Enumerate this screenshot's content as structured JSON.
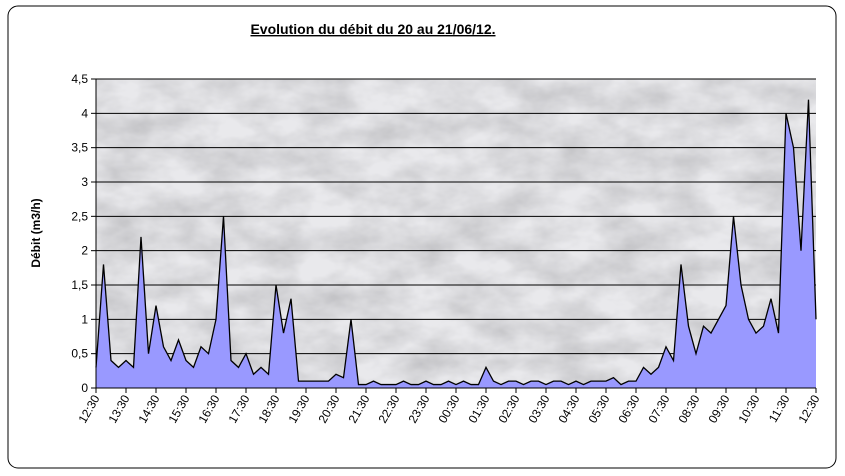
{
  "chart_data": {
    "type": "area",
    "title": "Evolution du débit du 20 au 21/06/12.",
    "y_label": "Débit (m3/h)",
    "fill_color": "#9999ff",
    "line_color": "#000000",
    "grid": true,
    "xlim": [
      0,
      24
    ],
    "xticks": [
      {
        "value": 0,
        "label": "12:30"
      },
      {
        "value": 1,
        "label": "13:30"
      },
      {
        "value": 2,
        "label": "14:30"
      },
      {
        "value": 3,
        "label": "15:30"
      },
      {
        "value": 4,
        "label": "16:30"
      },
      {
        "value": 5,
        "label": "17:30"
      },
      {
        "value": 6,
        "label": "18:30"
      },
      {
        "value": 7,
        "label": "19:30"
      },
      {
        "value": 8,
        "label": "20:30"
      },
      {
        "value": 9,
        "label": "21:30"
      },
      {
        "value": 10,
        "label": "22:30"
      },
      {
        "value": 11,
        "label": "23:30"
      },
      {
        "value": 12,
        "label": "00:30"
      },
      {
        "value": 13,
        "label": "01:30"
      },
      {
        "value": 14,
        "label": "02:30"
      },
      {
        "value": 15,
        "label": "03:30"
      },
      {
        "value": 16,
        "label": "04:30"
      },
      {
        "value": 17,
        "label": "05:30"
      },
      {
        "value": 18,
        "label": "06:30"
      },
      {
        "value": 19,
        "label": "07:30"
      },
      {
        "value": 20,
        "label": "08:30"
      },
      {
        "value": 21,
        "label": "09:30"
      },
      {
        "value": 22,
        "label": "10:30"
      },
      {
        "value": 23,
        "label": "11:30"
      },
      {
        "value": 24,
        "label": "12:30"
      }
    ],
    "ylim": [
      0,
      4.5
    ],
    "yticks": [
      0,
      {
        "value": 0.5,
        "label": "0,5"
      },
      1,
      {
        "value": 1.5,
        "label": "1,5"
      },
      2,
      {
        "value": 2.5,
        "label": "2,5"
      },
      3,
      {
        "value": 3.5,
        "label": "3,5"
      },
      4,
      {
        "value": 4.5,
        "label": "4,5"
      }
    ],
    "x": [
      0,
      0.25,
      0.5,
      0.75,
      1,
      1.25,
      1.5,
      1.75,
      2,
      2.25,
      2.5,
      2.75,
      3,
      3.25,
      3.5,
      3.75,
      4,
      4.25,
      4.5,
      4.75,
      5,
      5.25,
      5.5,
      5.75,
      6,
      6.25,
      6.5,
      6.75,
      7,
      7.25,
      7.5,
      7.75,
      8,
      8.25,
      8.5,
      8.75,
      9,
      9.25,
      9.5,
      9.75,
      10,
      10.25,
      10.5,
      10.75,
      11,
      11.25,
      11.5,
      11.75,
      12,
      12.25,
      12.5,
      12.75,
      13,
      13.25,
      13.5,
      13.75,
      14,
      14.25,
      14.5,
      14.75,
      15,
      15.25,
      15.5,
      15.75,
      16,
      16.25,
      16.5,
      16.75,
      17,
      17.25,
      17.5,
      17.75,
      18,
      18.25,
      18.5,
      18.75,
      19,
      19.25,
      19.5,
      19.75,
      20,
      20.25,
      20.5,
      20.75,
      21,
      21.25,
      21.5,
      21.75,
      22,
      22.25,
      22.5,
      22.75,
      23,
      23.25,
      23.5,
      23.75,
      24
    ],
    "values": [
      0.3,
      1.8,
      0.4,
      0.3,
      0.4,
      0.3,
      2.2,
      0.5,
      1.2,
      0.6,
      0.4,
      0.7,
      0.4,
      0.3,
      0.6,
      0.5,
      1.0,
      2.5,
      0.4,
      0.3,
      0.5,
      0.2,
      0.3,
      0.2,
      1.5,
      0.8,
      1.3,
      0.1,
      0.1,
      0.1,
      0.1,
      0.1,
      0.2,
      0.15,
      1.0,
      0.05,
      0.05,
      0.1,
      0.05,
      0.05,
      0.05,
      0.1,
      0.05,
      0.05,
      0.1,
      0.05,
      0.05,
      0.1,
      0.05,
      0.1,
      0.05,
      0.05,
      0.3,
      0.1,
      0.05,
      0.1,
      0.1,
      0.05,
      0.1,
      0.1,
      0.05,
      0.1,
      0.1,
      0.05,
      0.1,
      0.05,
      0.1,
      0.1,
      0.1,
      0.15,
      0.05,
      0.1,
      0.1,
      0.3,
      0.2,
      0.3,
      0.6,
      0.4,
      1.8,
      0.9,
      0.5,
      0.9,
      0.8,
      1.0,
      1.2,
      2.5,
      1.5,
      1.0,
      0.8,
      0.9,
      1.3,
      0.8,
      4.0,
      3.5,
      2.0,
      4.2,
      1.0
    ]
  }
}
